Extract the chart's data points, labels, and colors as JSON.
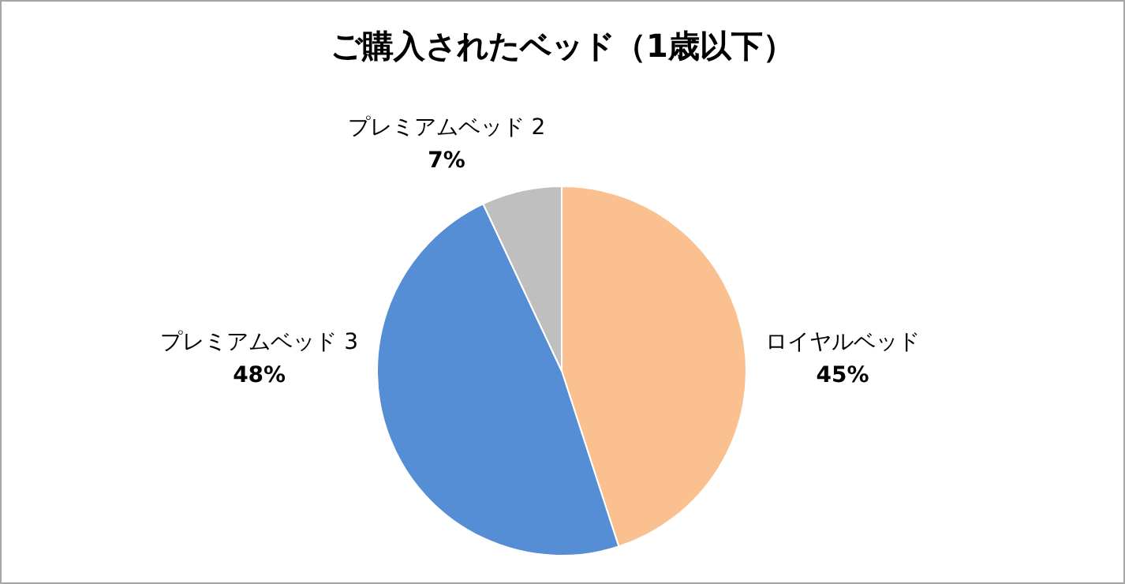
{
  "chart_data": {
    "type": "pie",
    "title": "ご購入されたベッド（1歳以下）",
    "categories": [
      "ロイヤルベッド",
      "プレミアムベッド 3",
      "プレミアムベッド 2"
    ],
    "values": [
      45,
      48,
      7
    ],
    "value_labels": [
      "45%",
      "48%",
      "7%"
    ],
    "colors": [
      "#fac090",
      "#558ed5",
      "#bfbfbf"
    ],
    "legend": false
  }
}
